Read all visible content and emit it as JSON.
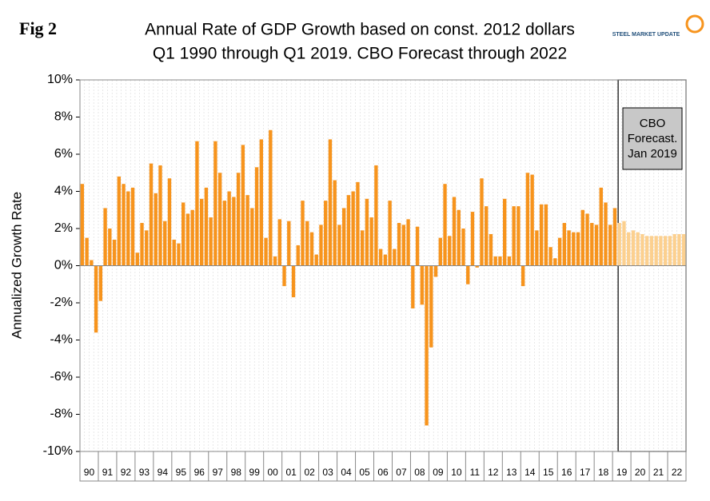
{
  "chart_data": {
    "type": "bar",
    "figure_label": "Fig 2",
    "title": "Annual Rate of GDP Growth based on const. 2012 dollars",
    "subtitle": "Q1 1990 through Q1 2019. CBO Forecast through 2022",
    "logo": "STEEL MARKET UPDATE",
    "y_label": "Annualized Growth Rate",
    "annotation": [
      "CBO",
      "Forecast.",
      "Jan 2019"
    ],
    "categories": [
      "90",
      null,
      null,
      null,
      "91",
      null,
      null,
      null,
      "92",
      null,
      null,
      null,
      "93",
      null,
      null,
      null,
      "94",
      null,
      null,
      null,
      "95",
      null,
      null,
      null,
      "96",
      null,
      null,
      null,
      "97",
      null,
      null,
      null,
      "98",
      null,
      null,
      null,
      "99",
      null,
      null,
      null,
      "00",
      null,
      null,
      null,
      "01",
      null,
      null,
      null,
      "02",
      null,
      null,
      null,
      "03",
      null,
      null,
      null,
      "04",
      null,
      null,
      null,
      "05",
      null,
      null,
      null,
      "06",
      null,
      null,
      null,
      "07",
      null,
      null,
      null,
      "08",
      null,
      null,
      null,
      "09",
      null,
      null,
      null,
      "10",
      null,
      null,
      null,
      "11",
      null,
      null,
      null,
      "12",
      null,
      null,
      null,
      "13",
      null,
      null,
      null,
      "14",
      null,
      null,
      null,
      "15",
      null,
      null,
      null,
      "16",
      null,
      null,
      null,
      "17",
      null,
      null,
      null,
      "18",
      null,
      null,
      null,
      "19",
      null,
      null,
      null,
      "20",
      null,
      null,
      null,
      "21",
      null,
      null,
      null,
      "22",
      null,
      null,
      null
    ],
    "series": [
      {
        "color": "#f7941d",
        "values": [
          4.4,
          1.5,
          0.3,
          -3.6,
          -1.9,
          3.1,
          2,
          1.4,
          4.8,
          4.4,
          4,
          4.2,
          0.7,
          2.3,
          1.9,
          5.5,
          3.9,
          5.4,
          2.4,
          4.7,
          1.4,
          1.2,
          3.4,
          2.8,
          3,
          6.7,
          3.6,
          4.2,
          2.6,
          6.7,
          5,
          3.5,
          4,
          3.7,
          5,
          6.5,
          3.8,
          3.1,
          5.3,
          6.8,
          1.5,
          7.3,
          0.5,
          2.5,
          -1.1,
          2.4,
          -1.7,
          1.1,
          3.5,
          2.4,
          1.8,
          0.6,
          2.2,
          3.5,
          6.8,
          4.6,
          2.2,
          3.1,
          3.8,
          4,
          4.5,
          1.9,
          3.6,
          2.6,
          5.4,
          0.9,
          0.6,
          3.5,
          0.9,
          2.3,
          2.2,
          2.5,
          -2.3,
          2.1,
          -2.1,
          -8.6,
          -4.4,
          -0.6,
          1.5,
          4.4,
          1.6,
          3.7,
          3,
          2,
          -1,
          2.9,
          -0.1,
          4.7,
          3.2,
          1.7,
          0.5,
          0.5,
          3.6,
          0.5,
          3.2,
          3.2,
          -1.1,
          5,
          4.9,
          1.9,
          3.3,
          3.3,
          1,
          0.4,
          1.5,
          2.3,
          1.9,
          1.8,
          1.8,
          3,
          2.8,
          2.3,
          2.2,
          4.2,
          3.4,
          2.2,
          3.1,
          null,
          null,
          null,
          null,
          null,
          null,
          null,
          null,
          null,
          null,
          null,
          null,
          null,
          null,
          null
        ]
      },
      {
        "color": "#fcd08f",
        "values": [
          null,
          null,
          null,
          null,
          null,
          null,
          null,
          null,
          null,
          null,
          null,
          null,
          null,
          null,
          null,
          null,
          null,
          null,
          null,
          null,
          null,
          null,
          null,
          null,
          null,
          null,
          null,
          null,
          null,
          null,
          null,
          null,
          null,
          null,
          null,
          null,
          null,
          null,
          null,
          null,
          null,
          null,
          null,
          null,
          null,
          null,
          null,
          null,
          null,
          null,
          null,
          null,
          null,
          null,
          null,
          null,
          null,
          null,
          null,
          null,
          null,
          null,
          null,
          null,
          null,
          null,
          null,
          null,
          null,
          null,
          null,
          null,
          null,
          null,
          null,
          null,
          null,
          null,
          null,
          null,
          null,
          null,
          null,
          null,
          null,
          null,
          null,
          null,
          null,
          null,
          null,
          null,
          null,
          null,
          null,
          null,
          null,
          null,
          null,
          null,
          null,
          null,
          null,
          null,
          null,
          null,
          null,
          null,
          null,
          null,
          null,
          null,
          null,
          null,
          null,
          null,
          null,
          2.3,
          2.4,
          1.8,
          1.9,
          1.8,
          1.7,
          1.6,
          1.6,
          1.6,
          1.6,
          1.6,
          1.6,
          1.7,
          1.7,
          1.7
        ]
      }
    ],
    "ylim": [
      -10,
      10
    ],
    "yticks": [
      {
        "value": -10,
        "label": "-10%"
      },
      {
        "value": -8,
        "label": "-8%"
      },
      {
        "value": -6,
        "label": "-6%"
      },
      {
        "value": -4,
        "label": "-4%"
      },
      {
        "value": -2,
        "label": "-2%"
      },
      {
        "value": 0,
        "label": "0%"
      },
      {
        "value": 2,
        "label": "2%"
      },
      {
        "value": 4,
        "label": "4%"
      },
      {
        "value": 6,
        "label": "6%"
      },
      {
        "value": 8,
        "label": "8%"
      },
      {
        "value": 10,
        "label": "10%"
      }
    ]
  }
}
